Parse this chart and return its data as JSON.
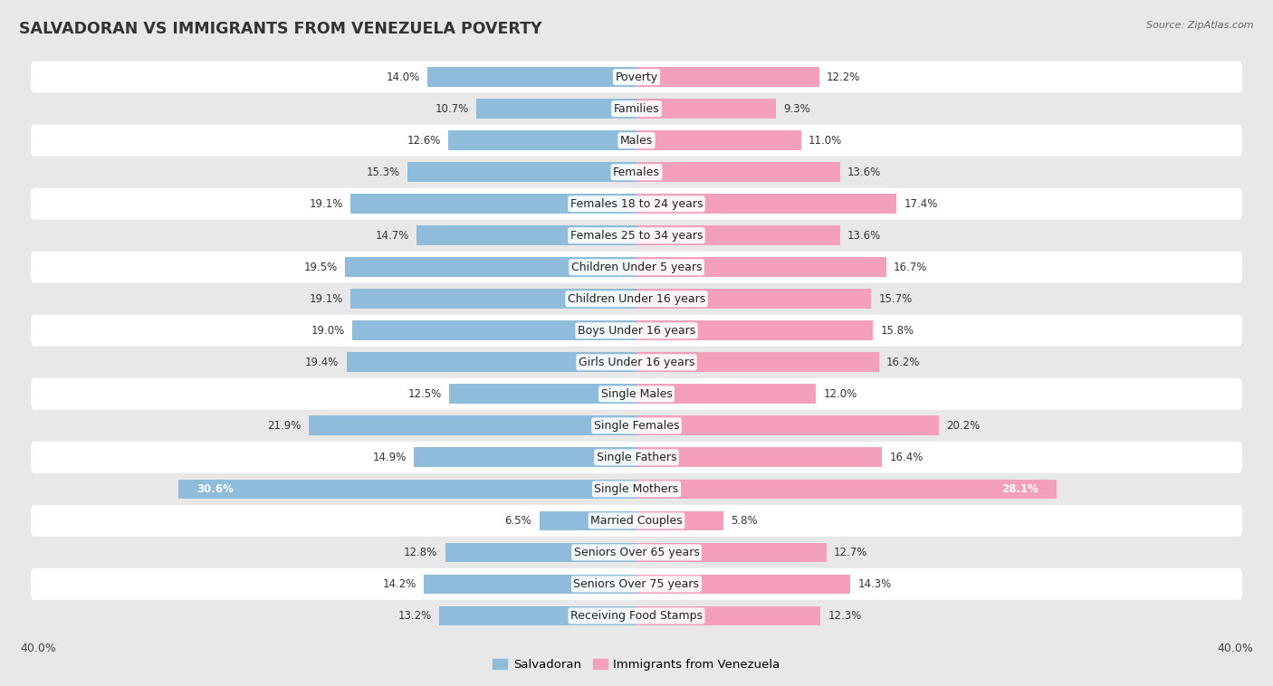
{
  "title": "SALVADORAN VS IMMIGRANTS FROM VENEZUELA POVERTY",
  "source": "Source: ZipAtlas.com",
  "categories": [
    "Poverty",
    "Families",
    "Males",
    "Females",
    "Females 18 to 24 years",
    "Females 25 to 34 years",
    "Children Under 5 years",
    "Children Under 16 years",
    "Boys Under 16 years",
    "Girls Under 16 years",
    "Single Males",
    "Single Females",
    "Single Fathers",
    "Single Mothers",
    "Married Couples",
    "Seniors Over 65 years",
    "Seniors Over 75 years",
    "Receiving Food Stamps"
  ],
  "salvadoran": [
    14.0,
    10.7,
    12.6,
    15.3,
    19.1,
    14.7,
    19.5,
    19.1,
    19.0,
    19.4,
    12.5,
    21.9,
    14.9,
    30.6,
    6.5,
    12.8,
    14.2,
    13.2
  ],
  "venezuela": [
    12.2,
    9.3,
    11.0,
    13.6,
    17.4,
    13.6,
    16.7,
    15.7,
    15.8,
    16.2,
    12.0,
    20.2,
    16.4,
    28.1,
    5.8,
    12.7,
    14.3,
    12.3
  ],
  "xlim": 40.0,
  "bar_height": 0.62,
  "blue_color": "#8fbcdb",
  "pink_color": "#f4a0bb",
  "bg_color": "#e8e8e8",
  "row_white": "#ffffff",
  "row_gray": "#e8e8e8",
  "label_fontsize": 9.0,
  "title_fontsize": 12.5,
  "value_fontsize": 8.5,
  "axis_fontsize": 9.0,
  "legend_fontsize": 9.5
}
